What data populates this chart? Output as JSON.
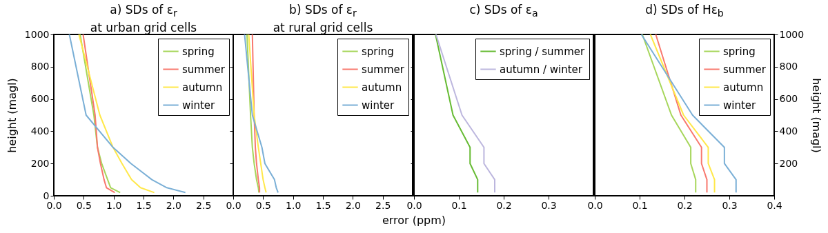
{
  "chart_data": [
    {
      "type": "line",
      "title": "a) SDs of ε$_{r}$",
      "subtitle": "at urban grid cells",
      "ylabel": "height (magl)",
      "xlim": [
        0,
        3
      ],
      "xticks": [
        {
          "value": 0,
          "label": "0.0"
        },
        {
          "value": 0.5,
          "label": "0.5"
        },
        {
          "value": 1,
          "label": "1.0"
        },
        {
          "value": 1.5,
          "label": "1.5"
        },
        {
          "value": 2,
          "label": "2.0"
        },
        {
          "value": 2.5,
          "label": "2.5"
        }
      ],
      "ylim": [
        0,
        1000
      ],
      "yticks": [
        0,
        200,
        400,
        600,
        800,
        1000
      ],
      "grid": false,
      "legend": "top right",
      "marker": "none",
      "line_style": "solid",
      "series": [
        {
          "name": "spring",
          "color": "#a6d65a",
          "x": [
            1.11,
            0.95,
            0.9,
            0.8,
            0.73,
            0.67,
            0.44
          ],
          "values": [
            20,
            50,
            100,
            200,
            300,
            500,
            1000
          ]
        },
        {
          "name": "summer",
          "color": "#f8786e",
          "x": [
            1.02,
            0.88,
            0.84,
            0.78,
            0.73,
            0.69,
            0.49
          ],
          "values": [
            20,
            50,
            100,
            200,
            300,
            500,
            1000
          ]
        },
        {
          "name": "autumn",
          "color": "#ffe84a",
          "x": [
            1.68,
            1.45,
            1.3,
            1.14,
            0.99,
            0.77,
            0.42
          ],
          "values": [
            20,
            50,
            100,
            200,
            300,
            500,
            1000
          ]
        },
        {
          "name": "winter",
          "color": "#7aafd6",
          "x": [
            2.2,
            1.89,
            1.64,
            1.29,
            0.99,
            0.54,
            0.26
          ],
          "values": [
            20,
            50,
            100,
            200,
            300,
            500,
            1000
          ]
        }
      ]
    },
    {
      "type": "line",
      "title": "b) SDs of ε$_{r}$",
      "subtitle": "at rural grid cells",
      "xlabel": "error (ppm)",
      "xlim": [
        0,
        3
      ],
      "xticks": [
        {
          "value": 0,
          "label": "0.0"
        },
        {
          "value": 0.5,
          "label": "0.5"
        },
        {
          "value": 1,
          "label": "1.0"
        },
        {
          "value": 1.5,
          "label": "1.5"
        },
        {
          "value": 2,
          "label": "2.0"
        },
        {
          "value": 2.5,
          "label": "2.5"
        }
      ],
      "ylim": [
        0,
        1000
      ],
      "yticks": [
        0,
        200,
        400,
        600,
        800,
        1000
      ],
      "tick_labels": "x",
      "grid": false,
      "legend": "top right",
      "marker": "none",
      "line_style": "solid",
      "series": [
        {
          "name": "spring",
          "color": "#a6d65a",
          "x": [
            0.43,
            0.42,
            0.39,
            0.35,
            0.32,
            0.29,
            0.23
          ],
          "values": [
            20,
            50,
            100,
            200,
            300,
            500,
            1000
          ]
        },
        {
          "name": "summer",
          "color": "#f8786e",
          "x": [
            0.44,
            0.44,
            0.42,
            0.39,
            0.37,
            0.35,
            0.32
          ],
          "values": [
            20,
            50,
            100,
            200,
            300,
            500,
            1000
          ]
        },
        {
          "name": "autumn",
          "color": "#ffe84a",
          "x": [
            0.55,
            0.53,
            0.5,
            0.46,
            0.42,
            0.35,
            0.26
          ],
          "values": [
            20,
            50,
            100,
            200,
            300,
            500,
            1000
          ]
        },
        {
          "name": "winter",
          "color": "#7aafd6",
          "x": [
            0.75,
            0.72,
            0.69,
            0.53,
            0.48,
            0.32,
            0.19
          ],
          "values": [
            20,
            50,
            100,
            200,
            300,
            500,
            1000
          ]
        }
      ]
    },
    {
      "type": "line",
      "title": "c) SDs of ε$_{a}$",
      "xlim": [
        0,
        0.4
      ],
      "xticks": [
        {
          "value": 0,
          "label": "0.0"
        },
        0.1,
        0.2,
        0.3
      ],
      "ylim": [
        0,
        1000
      ],
      "yticks": [
        0,
        200,
        400,
        600,
        800,
        1000
      ],
      "tick_labels": "x",
      "grid": false,
      "legend": "top right",
      "marker": "none",
      "line_style": "solid",
      "series": [
        {
          "name": "spring / summer",
          "color": "#66bb33",
          "x": [
            0.142,
            0.142,
            0.125,
            0.125,
            0.087,
            0.048
          ],
          "values": [
            20,
            100,
            200,
            300,
            500,
            1000
          ]
        },
        {
          "name": "autumn / winter",
          "color": "#bcb6de",
          "x": [
            0.18,
            0.18,
            0.156,
            0.156,
            0.107,
            0.049
          ],
          "values": [
            20,
            100,
            200,
            300,
            500,
            1000
          ]
        }
      ]
    },
    {
      "type": "line",
      "title": "d) SDs of Hε$_{b}$",
      "y2label": "height (magl)",
      "xlim": [
        0,
        0.4
      ],
      "xticks": [
        {
          "value": 0,
          "label": "0.0"
        },
        0.1,
        0.2,
        0.3,
        0.4
      ],
      "y2lim": [
        0,
        1000
      ],
      "y2ticks": [
        200,
        400,
        600,
        800,
        1000
      ],
      "grid": false,
      "legend": "top right",
      "marker": "none",
      "line_style": "solid",
      "series": [
        {
          "name": "spring",
          "color": "#a6d65a",
          "axis": "y2",
          "x": [
            0.225,
            0.225,
            0.214,
            0.214,
            0.171,
            0.106
          ],
          "values": [
            20,
            100,
            200,
            300,
            500,
            1000
          ]
        },
        {
          "name": "summer",
          "color": "#f8786e",
          "axis": "y2",
          "x": [
            0.25,
            0.25,
            0.238,
            0.238,
            0.192,
            0.136
          ],
          "values": [
            20,
            100,
            200,
            300,
            500,
            1000
          ]
        },
        {
          "name": "autumn",
          "color": "#ffe84a",
          "axis": "y2",
          "x": [
            0.267,
            0.267,
            0.253,
            0.253,
            0.198,
            0.124
          ],
          "values": [
            20,
            100,
            200,
            300,
            500,
            1000
          ]
        },
        {
          "name": "winter",
          "color": "#7aafd6",
          "axis": "y2",
          "x": [
            0.315,
            0.315,
            0.289,
            0.289,
            0.218,
            0.104
          ],
          "values": [
            20,
            100,
            200,
            300,
            500,
            1000
          ]
        }
      ]
    }
  ]
}
